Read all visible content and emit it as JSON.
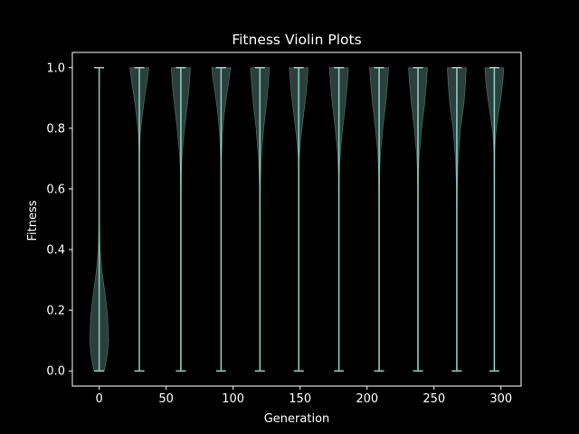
{
  "chart_data": {
    "type": "violin",
    "title": "Fitness Violin Plots",
    "xlabel": "Generation",
    "ylabel": "Fitness",
    "xlim": [
      -20,
      315
    ],
    "ylim": [
      -0.05,
      1.05
    ],
    "x_ticks": [
      0,
      50,
      100,
      150,
      200,
      250,
      300
    ],
    "y_ticks": [
      0.0,
      0.2,
      0.4,
      0.6,
      0.8,
      1.0
    ],
    "x_tick_labels": [
      "0",
      "50",
      "100",
      "150",
      "200",
      "250",
      "300"
    ],
    "y_tick_labels": [
      "0.0",
      "0.2",
      "0.4",
      "0.6",
      "0.8",
      "1.0"
    ],
    "grid": false,
    "colors": {
      "background": "#000000",
      "axes": "#ffffff",
      "violin_fill": "#8dd3c7",
      "violin_fill_opacity": 0.3,
      "line": "#8dd3c7"
    },
    "violins": [
      {
        "x": 0,
        "min": 0.0,
        "max": 1.0,
        "density": [
          [
            0.0,
            0.55
          ],
          [
            0.05,
            0.85
          ],
          [
            0.1,
            1.0
          ],
          [
            0.18,
            0.9
          ],
          [
            0.26,
            0.6
          ],
          [
            0.33,
            0.3
          ],
          [
            0.4,
            0.1
          ],
          [
            0.5,
            0.02
          ],
          [
            0.65,
            0.01
          ],
          [
            0.85,
            0.01
          ],
          [
            1.0,
            0.02
          ]
        ]
      },
      {
        "x": 30,
        "min": 0.0,
        "max": 1.0,
        "density": [
          [
            0.0,
            0.01
          ],
          [
            0.6,
            0.01
          ],
          [
            0.72,
            0.03
          ],
          [
            0.78,
            0.1
          ],
          [
            0.84,
            0.3
          ],
          [
            0.9,
            0.55
          ],
          [
            0.96,
            0.85
          ],
          [
            1.0,
            1.0
          ]
        ]
      },
      {
        "x": 61,
        "min": 0.0,
        "max": 1.0,
        "density": [
          [
            0.0,
            0.01
          ],
          [
            0.55,
            0.01
          ],
          [
            0.65,
            0.05
          ],
          [
            0.72,
            0.15
          ],
          [
            0.8,
            0.4
          ],
          [
            0.88,
            0.7
          ],
          [
            0.95,
            0.92
          ],
          [
            1.0,
            1.0
          ]
        ]
      },
      {
        "x": 91,
        "min": 0.0,
        "max": 1.0,
        "density": [
          [
            0.0,
            0.01
          ],
          [
            0.6,
            0.01
          ],
          [
            0.7,
            0.05
          ],
          [
            0.78,
            0.15
          ],
          [
            0.85,
            0.35
          ],
          [
            0.92,
            0.65
          ],
          [
            0.97,
            0.9
          ],
          [
            1.0,
            1.0
          ]
        ]
      },
      {
        "x": 120,
        "min": 0.0,
        "max": 1.0,
        "density": [
          [
            0.0,
            0.01
          ],
          [
            0.5,
            0.01
          ],
          [
            0.6,
            0.04
          ],
          [
            0.7,
            0.15
          ],
          [
            0.8,
            0.4
          ],
          [
            0.88,
            0.7
          ],
          [
            0.95,
            0.9
          ],
          [
            1.0,
            1.0
          ]
        ]
      },
      {
        "x": 149,
        "min": 0.0,
        "max": 1.0,
        "density": [
          [
            0.0,
            0.01
          ],
          [
            0.6,
            0.01
          ],
          [
            0.7,
            0.05
          ],
          [
            0.76,
            0.2
          ],
          [
            0.84,
            0.5
          ],
          [
            0.92,
            0.8
          ],
          [
            1.0,
            1.0
          ]
        ]
      },
      {
        "x": 179,
        "min": 0.0,
        "max": 1.0,
        "density": [
          [
            0.0,
            0.01
          ],
          [
            0.55,
            0.01
          ],
          [
            0.65,
            0.05
          ],
          [
            0.72,
            0.15
          ],
          [
            0.8,
            0.4
          ],
          [
            0.88,
            0.7
          ],
          [
            0.95,
            0.9
          ],
          [
            1.0,
            1.0
          ]
        ]
      },
      {
        "x": 209,
        "min": 0.0,
        "max": 1.0,
        "density": [
          [
            0.0,
            0.01
          ],
          [
            0.55,
            0.01
          ],
          [
            0.65,
            0.05
          ],
          [
            0.72,
            0.15
          ],
          [
            0.8,
            0.4
          ],
          [
            0.88,
            0.7
          ],
          [
            0.95,
            0.9
          ],
          [
            1.0,
            1.0
          ]
        ]
      },
      {
        "x": 238,
        "min": 0.0,
        "max": 1.0,
        "density": [
          [
            0.0,
            0.01
          ],
          [
            0.55,
            0.01
          ],
          [
            0.65,
            0.05
          ],
          [
            0.72,
            0.15
          ],
          [
            0.8,
            0.4
          ],
          [
            0.88,
            0.7
          ],
          [
            0.95,
            0.9
          ],
          [
            1.0,
            1.0
          ]
        ]
      },
      {
        "x": 267,
        "min": 0.0,
        "max": 1.0,
        "density": [
          [
            0.0,
            0.01
          ],
          [
            0.5,
            0.01
          ],
          [
            0.6,
            0.04
          ],
          [
            0.7,
            0.15
          ],
          [
            0.8,
            0.4
          ],
          [
            0.88,
            0.75
          ],
          [
            0.95,
            0.92
          ],
          [
            1.0,
            1.0
          ]
        ]
      },
      {
        "x": 295,
        "min": 0.0,
        "max": 1.0,
        "density": [
          [
            0.0,
            0.01
          ],
          [
            0.6,
            0.01
          ],
          [
            0.72,
            0.04
          ],
          [
            0.78,
            0.15
          ],
          [
            0.84,
            0.4
          ],
          [
            0.9,
            0.7
          ],
          [
            0.96,
            0.92
          ],
          [
            1.0,
            1.0
          ]
        ]
      }
    ]
  }
}
